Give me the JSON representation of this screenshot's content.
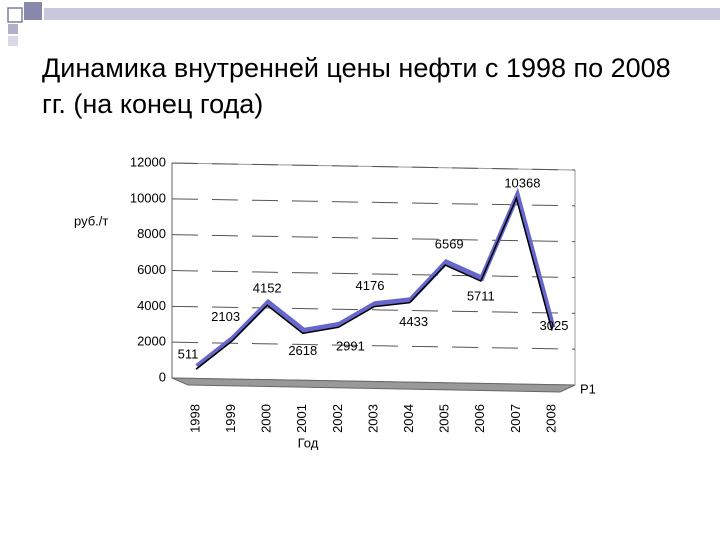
{
  "chart_data": {
    "type": "line",
    "title": "Динамика внутренней цены нефти с 1998 по 2008 гг. (на конец года)",
    "y_label": "руб./т",
    "x_label": "Год",
    "categories": [
      "1998",
      "1999",
      "2000",
      "2001",
      "2002",
      "2003",
      "2004",
      "2005",
      "2006",
      "2007",
      "2008"
    ],
    "series": [
      {
        "name": "Р1",
        "color": "#000000",
        "values": [
          511,
          2103,
          4152,
          2618,
          2991,
          4176,
          4433,
          6569,
          5711,
          10368,
          3025
        ]
      }
    ],
    "ylim": [
      0,
      12000
    ],
    "yticks": [
      0,
      2000,
      4000,
      6000,
      8000,
      10000,
      12000
    ],
    "grid": true
  }
}
